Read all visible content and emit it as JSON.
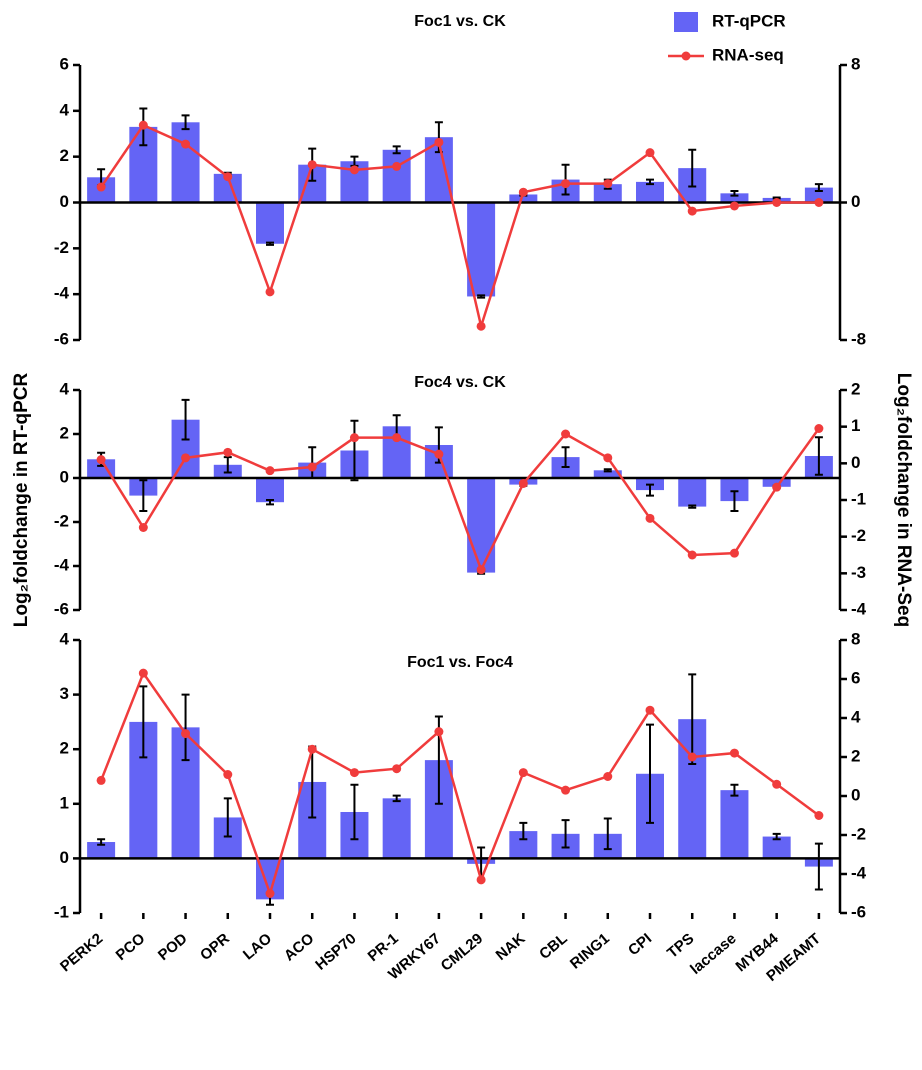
{
  "chart_data": [
    {
      "type": "combo",
      "title": "Foc1 vs. CK",
      "legend": "top-right",
      "ylim": [
        -6,
        6
      ],
      "yticks": [
        -6,
        -4,
        -2,
        0,
        2,
        4,
        6
      ],
      "y2lim": [
        -8,
        8
      ],
      "y2ticks": [
        -8,
        0,
        8
      ],
      "series": [
        {
          "name": "RT-qPCR",
          "color": "#6464f5",
          "values": [
            1.1,
            3.3,
            3.5,
            1.25,
            -1.8,
            1.65,
            1.8,
            2.3,
            2.85,
            -4.1,
            0.35,
            1.0,
            0.8,
            0.9,
            1.5,
            0.4,
            0.2,
            0.65
          ],
          "errors": [
            0.35,
            0.8,
            0.3,
            0.05,
            0.05,
            0.7,
            0.2,
            0.15,
            0.65,
            0.05,
            0.05,
            0.65,
            0.2,
            0.1,
            0.8,
            0.1,
            0.02,
            0.15
          ]
        },
        {
          "name": "RNA-seq",
          "color": "#f03c3c",
          "axis": "y2",
          "values": [
            0.9,
            4.5,
            3.4,
            1.5,
            -5.2,
            2.2,
            1.9,
            2.1,
            3.5,
            -7.2,
            0.6,
            1.1,
            1.1,
            2.9,
            -0.5,
            -0.2,
            0,
            0
          ]
        }
      ]
    },
    {
      "type": "combo",
      "title": "Foc4 vs. CK",
      "ylabel": "Log₂foldchange in RT-qPCR",
      "y2label": "Log₂foldchange in RNA-Seq",
      "ylim": [
        -6,
        4
      ],
      "yticks": [
        -6,
        -4,
        -2,
        0,
        2,
        4
      ],
      "y2lim": [
        -4,
        2
      ],
      "y2ticks": [
        -4,
        -3,
        -2,
        -1,
        0,
        1,
        2
      ],
      "series": [
        {
          "color": "#6464f5",
          "values": [
            0.85,
            -0.8,
            2.65,
            0.6,
            -1.1,
            0.7,
            1.25,
            2.35,
            1.5,
            -4.3,
            -0.3,
            0.95,
            0.35,
            -0.55,
            -1.3,
            -1.05,
            -0.4,
            1.0
          ],
          "errors": [
            0.3,
            0.7,
            0.9,
            0.35,
            0.1,
            0.7,
            1.35,
            0.5,
            0.8,
            0.05,
            0.05,
            0.45,
            0.05,
            0.25,
            0.05,
            0.45,
            0.05,
            0.85
          ]
        },
        {
          "color": "#f03c3c",
          "axis": "y2",
          "values": [
            0.1,
            -1.75,
            0.15,
            0.3,
            -0.2,
            -0.1,
            0.7,
            0.7,
            0.25,
            -2.9,
            -0.55,
            0.8,
            0.15,
            -1.5,
            -2.5,
            -2.45,
            -0.65,
            0.95
          ]
        }
      ]
    },
    {
      "type": "combo",
      "title": "Foc1 vs. Foc4",
      "categories": [
        "PERK2",
        "PCO",
        "POD",
        "OPR",
        "LAO",
        "ACO",
        "HSP70",
        "PR-1",
        "WRKY67",
        "CML29",
        "NAK",
        "CBL",
        "RING1",
        "CPI",
        "TPS",
        "laccase",
        "MYB44",
        "PMEAMT"
      ],
      "ylim": [
        -1,
        4
      ],
      "yticks": [
        -1,
        0,
        1,
        2,
        3,
        4
      ],
      "y2lim": [
        -6,
        8
      ],
      "y2ticks": [
        -6,
        -4,
        -2,
        0,
        2,
        4,
        6,
        8
      ],
      "series": [
        {
          "color": "#6464f5",
          "values": [
            0.3,
            2.5,
            2.4,
            0.75,
            -0.75,
            1.4,
            0.85,
            1.1,
            1.8,
            -0.1,
            0.5,
            0.45,
            0.45,
            1.55,
            2.55,
            1.25,
            0.4,
            -0.15
          ],
          "errors": [
            0.05,
            0.65,
            0.6,
            0.35,
            0.1,
            0.65,
            0.5,
            0.05,
            0.8,
            0.3,
            0.15,
            0.25,
            0.28,
            0.9,
            0.82,
            0.1,
            0.05,
            0.42
          ]
        },
        {
          "color": "#f03c3c",
          "axis": "y2",
          "values": [
            0.8,
            6.3,
            3.2,
            1.1,
            -5.0,
            2.4,
            1.2,
            1.4,
            3.3,
            -4.3,
            1.2,
            0.3,
            1.0,
            4.4,
            2.0,
            2.2,
            0.6,
            -1.0
          ]
        }
      ]
    }
  ]
}
